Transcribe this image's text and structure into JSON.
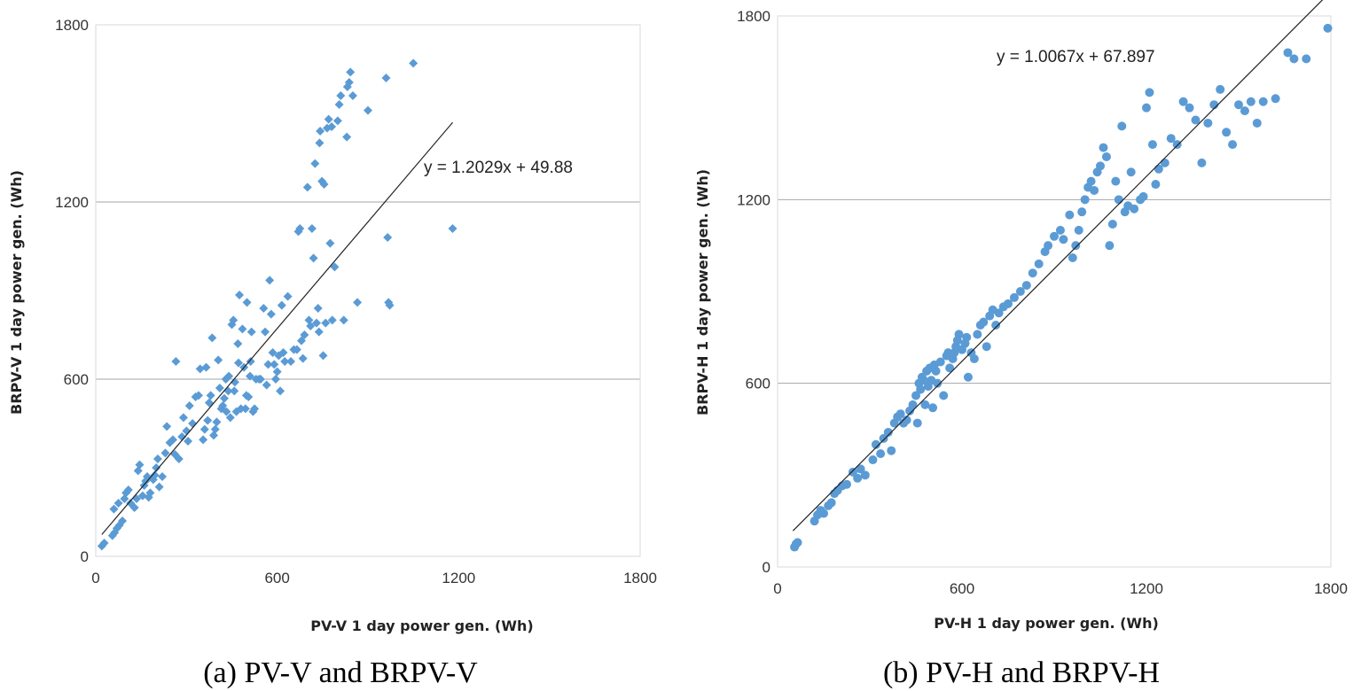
{
  "chart_data": [
    {
      "type": "scatter",
      "caption": "(a) PV-V and BRPV-V",
      "xlabel": "PV-V 1 day power gen. (Wh)",
      "ylabel": "BRPV-V  1 day power gen. (Wh)",
      "xlim": [
        0,
        1800
      ],
      "ylim": [
        0,
        1800
      ],
      "x_ticks": [
        "0",
        "600",
        "1200",
        "1800"
      ],
      "y_ticks": [
        "0",
        "600",
        "1200",
        "1800"
      ],
      "grid": "horizontal",
      "marker": "diamond",
      "color": "#5b9bd5",
      "trendline": {
        "slope": 1.2029,
        "intercept": 49.88,
        "x_range": [
          20,
          1180
        ],
        "equation": "y = 1.2029x + 49.88"
      },
      "points": [
        [
          20,
          35
        ],
        [
          28,
          45
        ],
        [
          55,
          70
        ],
        [
          62,
          80
        ],
        [
          70,
          95
        ],
        [
          78,
          105
        ],
        [
          88,
          120
        ],
        [
          60,
          160
        ],
        [
          75,
          180
        ],
        [
          95,
          195
        ],
        [
          100,
          215
        ],
        [
          108,
          225
        ],
        [
          115,
          180
        ],
        [
          128,
          165
        ],
        [
          135,
          195
        ],
        [
          140,
          290
        ],
        [
          145,
          310
        ],
        [
          155,
          205
        ],
        [
          160,
          240
        ],
        [
          165,
          255
        ],
        [
          170,
          270
        ],
        [
          175,
          200
        ],
        [
          180,
          215
        ],
        [
          190,
          260
        ],
        [
          195,
          275
        ],
        [
          200,
          300
        ],
        [
          205,
          330
        ],
        [
          210,
          235
        ],
        [
          220,
          270
        ],
        [
          230,
          350
        ],
        [
          235,
          440
        ],
        [
          245,
          385
        ],
        [
          255,
          395
        ],
        [
          262,
          345
        ],
        [
          265,
          660
        ],
        [
          275,
          330
        ],
        [
          285,
          405
        ],
        [
          290,
          470
        ],
        [
          300,
          425
        ],
        [
          305,
          390
        ],
        [
          310,
          510
        ],
        [
          320,
          450
        ],
        [
          330,
          540
        ],
        [
          340,
          545
        ],
        [
          345,
          635
        ],
        [
          355,
          395
        ],
        [
          360,
          430
        ],
        [
          365,
          640
        ],
        [
          370,
          460
        ],
        [
          375,
          520
        ],
        [
          380,
          545
        ],
        [
          385,
          740
        ],
        [
          390,
          410
        ],
        [
          395,
          430
        ],
        [
          400,
          455
        ],
        [
          405,
          665
        ],
        [
          410,
          570
        ],
        [
          415,
          500
        ],
        [
          420,
          510
        ],
        [
          425,
          535
        ],
        [
          430,
          600
        ],
        [
          432,
          490
        ],
        [
          438,
          560
        ],
        [
          440,
          610
        ],
        [
          445,
          470
        ],
        [
          450,
          785
        ],
        [
          455,
          800
        ],
        [
          458,
          560
        ],
        [
          460,
          590
        ],
        [
          465,
          490
        ],
        [
          470,
          720
        ],
        [
          472,
          655
        ],
        [
          475,
          885
        ],
        [
          480,
          500
        ],
        [
          485,
          770
        ],
        [
          490,
          640
        ],
        [
          495,
          500
        ],
        [
          498,
          545
        ],
        [
          500,
          860
        ],
        [
          505,
          540
        ],
        [
          510,
          610
        ],
        [
          512,
          660
        ],
        [
          515,
          760
        ],
        [
          520,
          490
        ],
        [
          525,
          500
        ],
        [
          530,
          600
        ],
        [
          540,
          600
        ],
        [
          545,
          600
        ],
        [
          555,
          840
        ],
        [
          560,
          760
        ],
        [
          565,
          580
        ],
        [
          570,
          650
        ],
        [
          575,
          935
        ],
        [
          580,
          820
        ],
        [
          585,
          690
        ],
        [
          590,
          650
        ],
        [
          595,
          600
        ],
        [
          600,
          625
        ],
        [
          605,
          680
        ],
        [
          610,
          560
        ],
        [
          615,
          850
        ],
        [
          620,
          690
        ],
        [
          625,
          660
        ],
        [
          635,
          880
        ],
        [
          645,
          660
        ],
        [
          655,
          700
        ],
        [
          665,
          700
        ],
        [
          670,
          1100
        ],
        [
          675,
          1110
        ],
        [
          680,
          730
        ],
        [
          685,
          670
        ],
        [
          690,
          750
        ],
        [
          700,
          1250
        ],
        [
          705,
          800
        ],
        [
          710,
          780
        ],
        [
          715,
          1110
        ],
        [
          720,
          1010
        ],
        [
          725,
          1330
        ],
        [
          730,
          790
        ],
        [
          735,
          840
        ],
        [
          738,
          760
        ],
        [
          740,
          1400
        ],
        [
          742,
          1440
        ],
        [
          748,
          1270
        ],
        [
          752,
          680
        ],
        [
          755,
          1260
        ],
        [
          760,
          790
        ],
        [
          765,
          1450
        ],
        [
          770,
          1480
        ],
        [
          775,
          1060
        ],
        [
          780,
          1455
        ],
        [
          782,
          800
        ],
        [
          790,
          980
        ],
        [
          800,
          1475
        ],
        [
          805,
          1530
        ],
        [
          810,
          1560
        ],
        [
          820,
          800
        ],
        [
          830,
          1420
        ],
        [
          832,
          1590
        ],
        [
          838,
          1605
        ],
        [
          842,
          1640
        ],
        [
          850,
          1560
        ],
        [
          865,
          860
        ],
        [
          900,
          1510
        ],
        [
          960,
          1620
        ],
        [
          965,
          1080
        ],
        [
          968,
          860
        ],
        [
          972,
          850
        ],
        [
          1050,
          1670
        ],
        [
          1180,
          1110
        ]
      ]
    },
    {
      "type": "scatter",
      "caption": "(b) PV-H and BRPV-H",
      "xlabel": "PV-H 1 day power gen. (Wh)",
      "ylabel": "BRPV-H 1 day power gen. (Wh)",
      "xlim": [
        0,
        1800
      ],
      "ylim": [
        0,
        1800
      ],
      "x_ticks": [
        "0",
        "600",
        "1200",
        "1800"
      ],
      "y_ticks": [
        "0",
        "600",
        "1200",
        "1800"
      ],
      "grid": "horizontal",
      "marker": "circle",
      "color": "#5b9bd5",
      "trendline": {
        "slope": 1.0067,
        "intercept": 67.897,
        "x_range": [
          50,
          1790
        ],
        "equation": "y = 1.0067x + 67.897"
      },
      "points": [
        [
          55,
          65
        ],
        [
          60,
          75
        ],
        [
          65,
          80
        ],
        [
          120,
          150
        ],
        [
          130,
          170
        ],
        [
          140,
          185
        ],
        [
          150,
          175
        ],
        [
          165,
          200
        ],
        [
          175,
          210
        ],
        [
          185,
          240
        ],
        [
          195,
          250
        ],
        [
          210,
          265
        ],
        [
          225,
          270
        ],
        [
          245,
          310
        ],
        [
          260,
          290
        ],
        [
          270,
          320
        ],
        [
          285,
          300
        ],
        [
          310,
          350
        ],
        [
          320,
          400
        ],
        [
          335,
          370
        ],
        [
          345,
          420
        ],
        [
          360,
          440
        ],
        [
          370,
          380
        ],
        [
          380,
          470
        ],
        [
          390,
          490
        ],
        [
          400,
          500
        ],
        [
          410,
          470
        ],
        [
          420,
          480
        ],
        [
          430,
          510
        ],
        [
          440,
          530
        ],
        [
          450,
          560
        ],
        [
          455,
          470
        ],
        [
          460,
          600
        ],
        [
          465,
          580
        ],
        [
          470,
          620
        ],
        [
          475,
          610
        ],
        [
          480,
          530
        ],
        [
          485,
          640
        ],
        [
          490,
          590
        ],
        [
          495,
          650
        ],
        [
          500,
          610
        ],
        [
          505,
          520
        ],
        [
          510,
          660
        ],
        [
          515,
          640
        ],
        [
          520,
          600
        ],
        [
          530,
          670
        ],
        [
          540,
          560
        ],
        [
          550,
          690
        ],
        [
          555,
          700
        ],
        [
          560,
          650
        ],
        [
          570,
          680
        ],
        [
          575,
          700
        ],
        [
          580,
          720
        ],
        [
          585,
          740
        ],
        [
          590,
          760
        ],
        [
          600,
          710
        ],
        [
          610,
          730
        ],
        [
          615,
          750
        ],
        [
          620,
          620
        ],
        [
          630,
          700
        ],
        [
          640,
          680
        ],
        [
          650,
          760
        ],
        [
          660,
          790
        ],
        [
          670,
          800
        ],
        [
          680,
          720
        ],
        [
          690,
          820
        ],
        [
          700,
          840
        ],
        [
          710,
          790
        ],
        [
          720,
          830
        ],
        [
          735,
          850
        ],
        [
          750,
          860
        ],
        [
          770,
          880
        ],
        [
          790,
          900
        ],
        [
          810,
          920
        ],
        [
          830,
          960
        ],
        [
          850,
          990
        ],
        [
          870,
          1030
        ],
        [
          880,
          1050
        ],
        [
          900,
          1080
        ],
        [
          920,
          1100
        ],
        [
          930,
          1070
        ],
        [
          950,
          1150
        ],
        [
          960,
          1010
        ],
        [
          970,
          1050
        ],
        [
          980,
          1100
        ],
        [
          990,
          1160
        ],
        [
          1000,
          1200
        ],
        [
          1010,
          1240
        ],
        [
          1020,
          1260
        ],
        [
          1030,
          1230
        ],
        [
          1040,
          1290
        ],
        [
          1050,
          1310
        ],
        [
          1060,
          1370
        ],
        [
          1070,
          1340
        ],
        [
          1080,
          1050
        ],
        [
          1090,
          1120
        ],
        [
          1100,
          1260
        ],
        [
          1110,
          1200
        ],
        [
          1120,
          1440
        ],
        [
          1130,
          1160
        ],
        [
          1140,
          1180
        ],
        [
          1150,
          1290
        ],
        [
          1160,
          1170
        ],
        [
          1180,
          1200
        ],
        [
          1190,
          1210
        ],
        [
          1200,
          1500
        ],
        [
          1210,
          1550
        ],
        [
          1220,
          1380
        ],
        [
          1230,
          1250
        ],
        [
          1240,
          1300
        ],
        [
          1260,
          1320
        ],
        [
          1280,
          1400
        ],
        [
          1300,
          1380
        ],
        [
          1320,
          1520
        ],
        [
          1340,
          1500
        ],
        [
          1360,
          1460
        ],
        [
          1380,
          1320
        ],
        [
          1400,
          1450
        ],
        [
          1420,
          1510
        ],
        [
          1440,
          1560
        ],
        [
          1460,
          1420
        ],
        [
          1480,
          1380
        ],
        [
          1500,
          1510
        ],
        [
          1520,
          1490
        ],
        [
          1540,
          1520
        ],
        [
          1560,
          1450
        ],
        [
          1580,
          1520
        ],
        [
          1620,
          1530
        ],
        [
          1660,
          1680
        ],
        [
          1680,
          1660
        ],
        [
          1720,
          1660
        ],
        [
          1790,
          1760
        ]
      ]
    }
  ]
}
